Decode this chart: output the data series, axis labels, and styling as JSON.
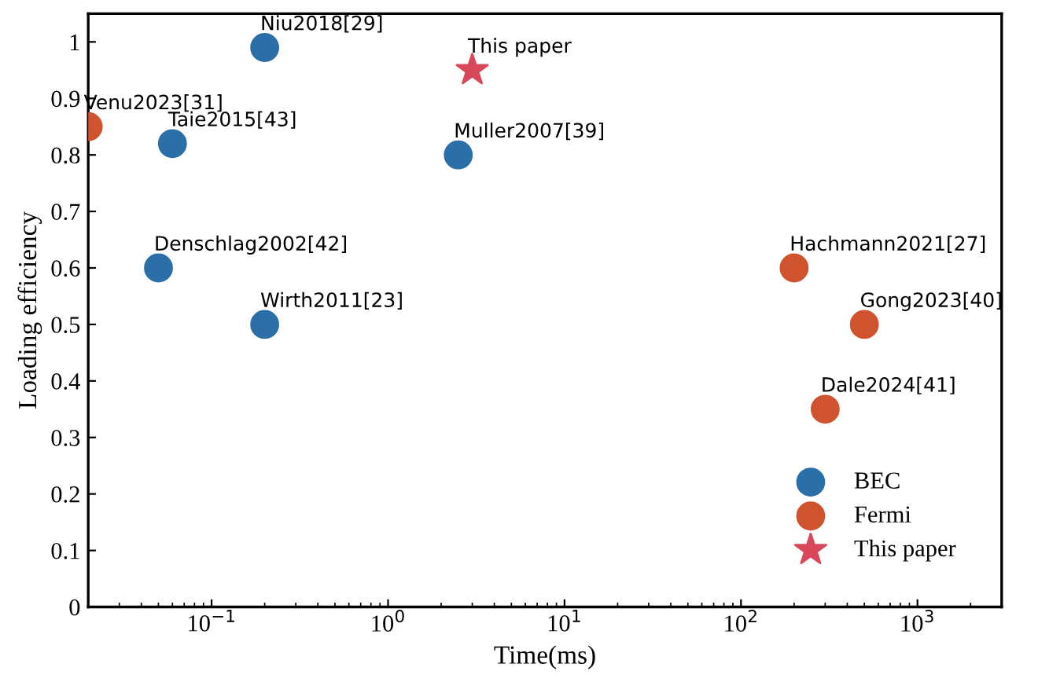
{
  "chart_data": {
    "type": "scatter",
    "xlabel": "Time(ms)",
    "ylabel": "Loading efficiency",
    "log": "x",
    "xlim": [
      0.02,
      3000
    ],
    "ylim": [
      0,
      1.05
    ],
    "xticks": [
      {
        "value": 0.1,
        "label": "10$^{−1}$"
      },
      {
        "value": 1,
        "label": "10$^{0}$"
      },
      {
        "value": 10,
        "label": "10$^{1}$"
      },
      {
        "value": 100,
        "label": "10$^{2}$"
      },
      {
        "value": 1000,
        "label": "10$^{3}$"
      }
    ],
    "yticks": [
      0,
      0.1,
      0.2,
      0.3,
      0.4,
      0.5,
      0.6,
      0.7,
      0.8,
      0.9,
      1
    ],
    "grid": false,
    "legend": "bottom right",
    "series": [
      {
        "name": "BEC",
        "color": "#2c6fa8",
        "marker": "circle",
        "x": [
          0.2,
          0.06,
          0.05,
          0.2,
          2.5
        ],
        "values": [
          0.99,
          0.82,
          0.6,
          0.5,
          0.8
        ]
      },
      {
        "name": "Fermi",
        "color": "#cf532f",
        "marker": "circle",
        "x": [
          0.02,
          200,
          500,
          300
        ],
        "values": [
          0.85,
          0.6,
          0.5,
          0.35
        ]
      },
      {
        "name": "This paper",
        "color": "#d8485a",
        "marker": "star",
        "x": [
          3
        ],
        "values": [
          0.95
        ]
      }
    ],
    "annotations": [
      {
        "text": "Niu2018[29]",
        "x": 0.2,
        "y": 0.99
      },
      {
        "text": "Taie2015[43]",
        "x": 0.06,
        "y": 0.82
      },
      {
        "text": "Denschlag2002[42]",
        "x": 0.05,
        "y": 0.6
      },
      {
        "text": "Wirth2011[23]",
        "x": 0.2,
        "y": 0.5
      },
      {
        "text": "Muller2007[39]",
        "x": 2.5,
        "y": 0.8
      },
      {
        "text": "Venu2023[31]",
        "x": 0.02,
        "y": 0.85
      },
      {
        "text": "Hachmann2021[27]",
        "x": 200,
        "y": 0.6
      },
      {
        "text": "Gong2023[40]",
        "x": 500,
        "y": 0.5
      },
      {
        "text": "Dale2024[41]",
        "x": 300,
        "y": 0.35
      },
      {
        "text": "This paper",
        "x": 3,
        "y": 0.95
      }
    ]
  }
}
